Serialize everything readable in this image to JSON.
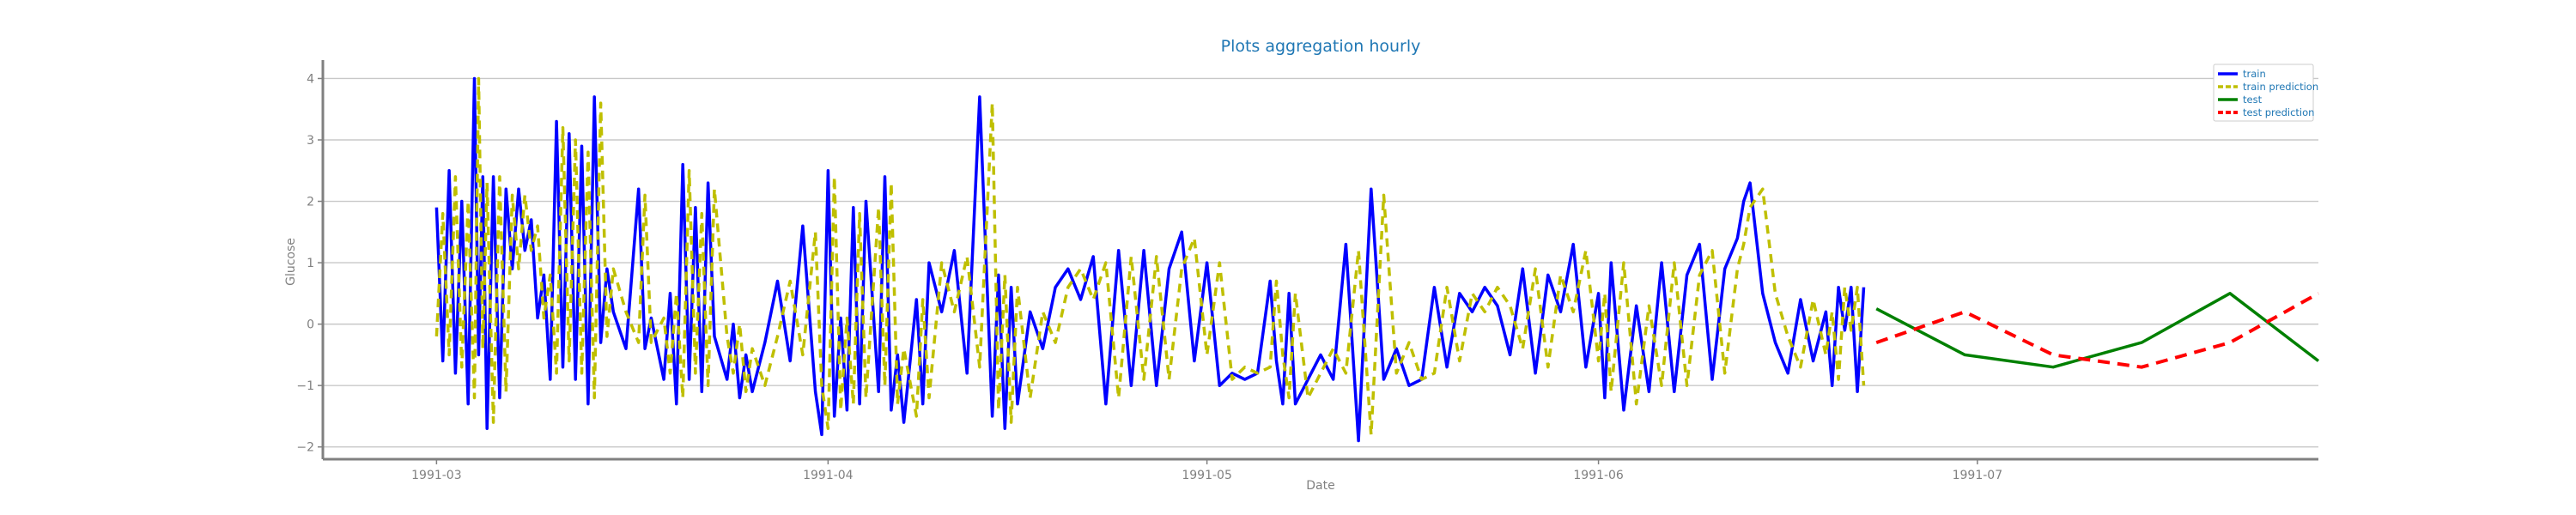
{
  "chart_data": {
    "type": "line",
    "title": "Plots aggregation hourly",
    "xlabel": "Date",
    "ylabel": "Glucose",
    "xlim": [
      "1991-02-20",
      "1991-07-28"
    ],
    "ylim": [
      -2.2,
      4.3
    ],
    "yticks": [
      -2,
      -1,
      0,
      1,
      2,
      3,
      4
    ],
    "ytick_labels": [
      "−2",
      "−1",
      "0",
      "1",
      "2",
      "3",
      "4"
    ],
    "xticks": [
      "1991-03-01",
      "1991-04-01",
      "1991-05-01",
      "1991-06-01",
      "1991-07-01"
    ],
    "xtick_labels": [
      "1991-03",
      "1991-04",
      "1991-05",
      "1991-06",
      "1991-07"
    ],
    "grid": "horizontal",
    "legend_position": "top-right",
    "series": [
      {
        "name": "train",
        "color": "#0000ff",
        "style": "solid",
        "x": [
          "1991-03-01",
          "1991-03-01",
          "1991-03-02",
          "1991-03-02",
          "1991-03-03",
          "1991-03-03",
          "1991-03-04",
          "1991-03-04",
          "1991-03-04",
          "1991-03-05",
          "1991-03-05",
          "1991-03-06",
          "1991-03-06",
          "1991-03-07",
          "1991-03-07",
          "1991-03-08",
          "1991-03-08",
          "1991-03-09",
          "1991-03-09",
          "1991-03-10",
          "1991-03-10",
          "1991-03-11",
          "1991-03-11",
          "1991-03-12",
          "1991-03-12",
          "1991-03-13",
          "1991-03-13",
          "1991-03-14",
          "1991-03-14",
          "1991-03-15",
          "1991-03-16",
          "1991-03-17",
          "1991-03-17",
          "1991-03-18",
          "1991-03-19",
          "1991-03-19",
          "1991-03-20",
          "1991-03-20",
          "1991-03-21",
          "1991-03-21",
          "1991-03-22",
          "1991-03-22",
          "1991-03-23",
          "1991-03-24",
          "1991-03-24",
          "1991-03-25",
          "1991-03-25",
          "1991-03-26",
          "1991-03-27",
          "1991-03-28",
          "1991-03-29",
          "1991-03-30",
          "1991-03-31",
          "1991-03-31",
          "1991-04-01",
          "1991-04-01",
          "1991-04-02",
          "1991-04-02",
          "1991-04-03",
          "1991-04-03",
          "1991-04-04",
          "1991-04-05",
          "1991-04-05",
          "1991-04-06",
          "1991-04-06",
          "1991-04-07",
          "1991-04-08",
          "1991-04-08",
          "1991-04-09",
          "1991-04-10",
          "1991-04-11",
          "1991-04-12",
          "1991-04-13",
          "1991-04-14",
          "1991-04-14",
          "1991-04-15",
          "1991-04-15",
          "1991-04-16",
          "1991-04-17",
          "1991-04-18",
          "1991-04-19",
          "1991-04-20",
          "1991-04-21",
          "1991-04-22",
          "1991-04-23",
          "1991-04-24",
          "1991-04-25",
          "1991-04-26",
          "1991-04-27",
          "1991-04-28",
          "1991-04-29",
          "1991-04-30",
          "1991-05-01",
          "1991-05-02",
          "1991-05-03",
          "1991-05-04",
          "1991-05-05",
          "1991-05-06",
          "1991-05-06",
          "1991-05-07",
          "1991-05-07",
          "1991-05-08",
          "1991-05-09",
          "1991-05-10",
          "1991-05-11",
          "1991-05-12",
          "1991-05-13",
          "1991-05-14",
          "1991-05-15",
          "1991-05-16",
          "1991-05-17",
          "1991-05-18",
          "1991-05-19",
          "1991-05-20",
          "1991-05-21",
          "1991-05-22",
          "1991-05-23",
          "1991-05-24",
          "1991-05-25",
          "1991-05-26",
          "1991-05-27",
          "1991-05-28",
          "1991-05-29",
          "1991-05-30",
          "1991-05-31",
          "1991-06-01",
          "1991-06-01",
          "1991-06-02",
          "1991-06-03",
          "1991-06-04",
          "1991-06-05",
          "1991-06-06",
          "1991-06-07",
          "1991-06-08",
          "1991-06-09",
          "1991-06-10",
          "1991-06-11",
          "1991-06-12",
          "1991-06-12",
          "1991-06-13",
          "1991-06-14",
          "1991-06-15",
          "1991-06-16",
          "1991-06-17",
          "1991-06-18",
          "1991-06-19",
          "1991-06-19",
          "1991-06-20",
          "1991-06-20",
          "1991-06-21",
          "1991-06-21",
          "1991-06-22"
        ],
        "values": [
          1.9,
          -0.6,
          2.5,
          -0.8,
          2.0,
          -1.3,
          4.0,
          -0.5,
          2.4,
          -1.7,
          2.4,
          -1.2,
          2.2,
          0.9,
          2.2,
          1.2,
          1.7,
          0.1,
          0.8,
          -0.9,
          3.3,
          -0.7,
          3.1,
          -0.9,
          2.9,
          -1.3,
          3.7,
          -0.3,
          0.9,
          0.2,
          -0.4,
          2.2,
          -0.4,
          0.1,
          -0.9,
          0.5,
          -1.3,
          2.6,
          -0.9,
          1.9,
          -1.1,
          2.3,
          -0.2,
          -0.9,
          0.0,
          -1.2,
          -0.5,
          -1.1,
          -0.3,
          0.7,
          -0.6,
          1.6,
          -1.1,
          -1.8,
          2.5,
          -1.5,
          0.1,
          -1.4,
          1.9,
          -1.3,
          2.0,
          -1.1,
          2.4,
          -1.4,
          -0.5,
          -1.6,
          0.4,
          -1.3,
          1.0,
          0.2,
          1.2,
          -0.8,
          3.7,
          -1.5,
          0.8,
          -1.7,
          0.6,
          -1.3,
          0.2,
          -0.4,
          0.6,
          0.9,
          0.4,
          1.1,
          -1.3,
          1.2,
          -1.0,
          1.2,
          -1.0,
          0.9,
          1.5,
          -0.6,
          1.0,
          -1.0,
          -0.8,
          -0.9,
          -0.8,
          0.7,
          -0.6,
          -1.3,
          0.5,
          -1.3,
          -0.9,
          -0.5,
          -0.9,
          1.3,
          -1.9,
          2.2,
          -0.9,
          -0.4,
          -1.0,
          -0.9,
          0.6,
          -0.7,
          0.5,
          0.2,
          0.6,
          0.3,
          -0.5,
          0.9,
          -0.8,
          0.8,
          0.2,
          1.3,
          -0.7,
          0.5,
          -1.2,
          1.0,
          -1.4,
          0.3,
          -1.1,
          1.0,
          -1.1,
          0.8,
          1.3,
          -0.9,
          0.9,
          1.4,
          2.0,
          2.3,
          0.5,
          -0.3,
          -0.8,
          0.4,
          -0.6,
          0.2,
          -1.0,
          0.6,
          -0.1,
          0.6,
          -1.1,
          0.6
        ]
      },
      {
        "name": "train prediction",
        "color": "#bfbf00",
        "style": "dashed",
        "x": [
          "1991-03-01",
          "1991-03-01",
          "1991-03-02",
          "1991-03-02",
          "1991-03-03",
          "1991-03-03",
          "1991-03-04",
          "1991-03-04",
          "1991-03-04",
          "1991-03-05",
          "1991-03-05",
          "1991-03-06",
          "1991-03-06",
          "1991-03-07",
          "1991-03-07",
          "1991-03-08",
          "1991-03-08",
          "1991-03-09",
          "1991-03-09",
          "1991-03-10",
          "1991-03-10",
          "1991-03-11",
          "1991-03-11",
          "1991-03-12",
          "1991-03-12",
          "1991-03-13",
          "1991-03-13",
          "1991-03-14",
          "1991-03-14",
          "1991-03-15",
          "1991-03-16",
          "1991-03-17",
          "1991-03-17",
          "1991-03-18",
          "1991-03-19",
          "1991-03-19",
          "1991-03-20",
          "1991-03-20",
          "1991-03-21",
          "1991-03-21",
          "1991-03-22",
          "1991-03-22",
          "1991-03-23",
          "1991-03-24",
          "1991-03-24",
          "1991-03-25",
          "1991-03-25",
          "1991-03-26",
          "1991-03-27",
          "1991-03-28",
          "1991-03-29",
          "1991-03-30",
          "1991-03-31",
          "1991-03-31",
          "1991-04-01",
          "1991-04-01",
          "1991-04-02",
          "1991-04-02",
          "1991-04-03",
          "1991-04-03",
          "1991-04-04",
          "1991-04-05",
          "1991-04-05",
          "1991-04-06",
          "1991-04-06",
          "1991-04-07",
          "1991-04-08",
          "1991-04-08",
          "1991-04-09",
          "1991-04-10",
          "1991-04-11",
          "1991-04-12",
          "1991-04-13",
          "1991-04-14",
          "1991-04-14",
          "1991-04-15",
          "1991-04-15",
          "1991-04-16",
          "1991-04-17",
          "1991-04-18",
          "1991-04-19",
          "1991-04-20",
          "1991-04-21",
          "1991-04-22",
          "1991-04-23",
          "1991-04-24",
          "1991-04-25",
          "1991-04-26",
          "1991-04-27",
          "1991-04-28",
          "1991-04-29",
          "1991-04-30",
          "1991-05-01",
          "1991-05-02",
          "1991-05-03",
          "1991-05-04",
          "1991-05-05",
          "1991-05-06",
          "1991-05-06",
          "1991-05-07",
          "1991-05-07",
          "1991-05-08",
          "1991-05-09",
          "1991-05-10",
          "1991-05-11",
          "1991-05-12",
          "1991-05-13",
          "1991-05-14",
          "1991-05-15",
          "1991-05-16",
          "1991-05-17",
          "1991-05-18",
          "1991-05-19",
          "1991-05-20",
          "1991-05-21",
          "1991-05-22",
          "1991-05-23",
          "1991-05-24",
          "1991-05-25",
          "1991-05-26",
          "1991-05-27",
          "1991-05-28",
          "1991-05-29",
          "1991-05-30",
          "1991-05-31",
          "1991-06-01",
          "1991-06-01",
          "1991-06-02",
          "1991-06-03",
          "1991-06-04",
          "1991-06-05",
          "1991-06-06",
          "1991-06-07",
          "1991-06-08",
          "1991-06-09",
          "1991-06-10",
          "1991-06-11",
          "1991-06-12",
          "1991-06-12",
          "1991-06-13",
          "1991-06-14",
          "1991-06-15",
          "1991-06-16",
          "1991-06-17",
          "1991-06-18",
          "1991-06-19",
          "1991-06-19",
          "1991-06-20",
          "1991-06-20",
          "1991-06-21",
          "1991-06-21",
          "1991-06-22"
        ],
        "values": [
          -0.2,
          1.8,
          -0.5,
          2.4,
          -0.7,
          2.0,
          -1.2,
          4.0,
          -0.4,
          2.3,
          -1.6,
          2.4,
          -1.1,
          2.1,
          0.9,
          2.1,
          1.2,
          1.6,
          0.1,
          0.8,
          -0.8,
          3.2,
          -0.6,
          3.0,
          -0.8,
          2.8,
          -1.2,
          3.6,
          -0.2,
          0.9,
          0.2,
          -0.3,
          2.1,
          -0.3,
          0.1,
          -0.8,
          0.5,
          -1.2,
          2.5,
          -0.8,
          1.8,
          -1.0,
          2.2,
          -0.2,
          -0.8,
          0.0,
          -1.1,
          -0.4,
          -1.0,
          -0.2,
          0.7,
          -0.5,
          1.5,
          -1.0,
          -1.7,
          2.4,
          -1.4,
          0.1,
          -1.3,
          1.8,
          -1.2,
          1.9,
          -1.0,
          2.3,
          -1.3,
          -0.4,
          -1.5,
          0.4,
          -1.2,
          1.0,
          0.2,
          1.1,
          -0.7,
          3.6,
          -1.4,
          0.8,
          -1.6,
          0.6,
          -1.2,
          0.2,
          -0.3,
          0.6,
          0.9,
          0.4,
          1.0,
          -1.2,
          1.1,
          -0.9,
          1.1,
          -0.9,
          0.9,
          1.4,
          -0.5,
          1.0,
          -0.9,
          -0.7,
          -0.8,
          -0.7,
          0.7,
          -0.5,
          -1.2,
          0.5,
          -1.2,
          -0.8,
          -0.4,
          -0.8,
          1.2,
          -1.8,
          2.1,
          -0.8,
          -0.3,
          -0.9,
          -0.8,
          0.6,
          -0.6,
          0.5,
          0.2,
          0.6,
          0.3,
          -0.4,
          0.9,
          -0.7,
          0.8,
          0.2,
          1.2,
          -0.6,
          0.5,
          -1.1,
          1.0,
          -1.3,
          0.3,
          -1.0,
          1.0,
          -1.0,
          0.8,
          1.2,
          -0.8,
          0.9,
          1.3,
          1.9,
          2.2,
          0.5,
          -0.2,
          -0.7,
          0.4,
          -0.5,
          0.2,
          -0.9,
          0.6,
          -0.1,
          0.6,
          -1.0
        ]
      },
      {
        "name": "test",
        "color": "#008000",
        "style": "solid",
        "x": [
          "1991-06-23",
          "1991-06-30",
          "1991-07-07",
          "1991-07-14",
          "1991-07-21",
          "1991-07-28"
        ],
        "values": [
          0.25,
          -0.5,
          -0.7,
          -0.3,
          0.5,
          -0.6
        ]
      },
      {
        "name": "test prediction",
        "color": "#ff0000",
        "style": "dashed",
        "x": [
          "1991-06-23",
          "1991-06-30",
          "1991-07-07",
          "1991-07-14",
          "1991-07-21",
          "1991-07-28"
        ],
        "values": [
          -0.3,
          0.2,
          -0.5,
          -0.7,
          -0.3,
          0.5
        ]
      }
    ]
  }
}
